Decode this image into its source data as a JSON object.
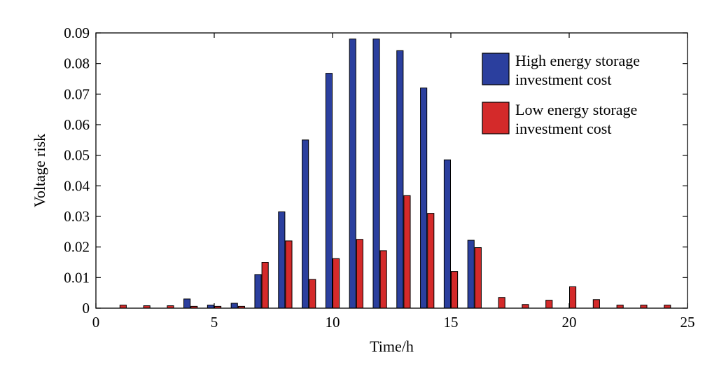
{
  "chart_data": {
    "type": "bar",
    "title": "",
    "xlabel": "Time/h",
    "ylabel": "Voltage risk",
    "xlim": [
      0,
      25
    ],
    "ylim": [
      0,
      0.09
    ],
    "xticks": [
      "0",
      "5",
      "10",
      "15",
      "20",
      "25"
    ],
    "yticks": [
      "0",
      "0.01",
      "0.02",
      "0.03",
      "0.04",
      "0.05",
      "0.06",
      "0.07",
      "0.08",
      "0.09"
    ],
    "legend_position": "top-right",
    "categories": [
      1,
      2,
      3,
      4,
      5,
      6,
      7,
      8,
      9,
      10,
      11,
      12,
      13,
      14,
      15,
      16,
      17,
      18,
      19,
      20,
      21,
      22,
      23,
      24
    ],
    "series": [
      {
        "name": "High energy storage investment cost",
        "legend_lines": [
          "High energy storage",
          "investment cost"
        ],
        "color": "#2b3f9e",
        "values": [
          0,
          0,
          0,
          0.003,
          0.001,
          0.0016,
          0.011,
          0.0315,
          0.055,
          0.0768,
          0.088,
          0.088,
          0.0842,
          0.072,
          0.0485,
          0.0222,
          0,
          0,
          0,
          0,
          0,
          0,
          0,
          0
        ]
      },
      {
        "name": "Low energy storage investment cost",
        "legend_lines": [
          "Low energy storage",
          "investment cost"
        ],
        "color": "#d42a2a",
        "values": [
          0.001,
          0.0008,
          0.0008,
          0.0006,
          0.0006,
          0.0006,
          0.015,
          0.022,
          0.0094,
          0.0162,
          0.0225,
          0.0188,
          0.0368,
          0.031,
          0.012,
          0.0198,
          0.0035,
          0.0012,
          0.0026,
          0.007,
          0.0028,
          0.001,
          0.001,
          0.001
        ]
      }
    ]
  }
}
